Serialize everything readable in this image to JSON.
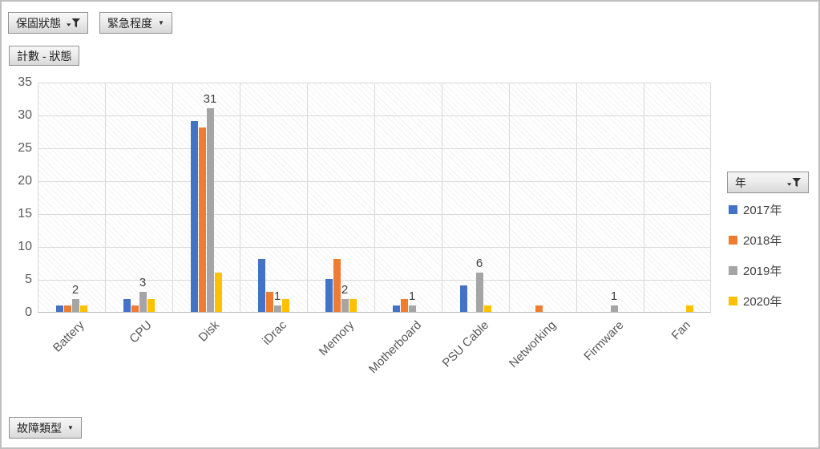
{
  "filters": {
    "warranty_label": "保固狀態",
    "urgency_label": "緊急程度",
    "value_label": "計數 - 狀態",
    "axis_label": "故障類型",
    "legend_label": "年"
  },
  "chart_data": {
    "type": "bar",
    "title": "計數 - 狀態",
    "categories": [
      "Battery",
      "CPU",
      "Disk",
      "iDrac",
      "Memory",
      "Motherboard",
      "PSU Cable",
      "Networking",
      "Firmware",
      "Fan"
    ],
    "series": [
      {
        "name": "2017年",
        "color": "#4472C4",
        "values": [
          1,
          2,
          29,
          8,
          5,
          1,
          4,
          0,
          0,
          0
        ]
      },
      {
        "name": "2018年",
        "color": "#ED7D31",
        "values": [
          1,
          1,
          28,
          3,
          8,
          2,
          0,
          1,
          0,
          0
        ]
      },
      {
        "name": "2019年",
        "color": "#A5A5A5",
        "values": [
          2,
          3,
          31,
          1,
          2,
          1,
          6,
          0,
          1,
          0
        ],
        "labels_shown": true
      },
      {
        "name": "2020年",
        "color": "#FFC000",
        "values": [
          1,
          2,
          6,
          2,
          2,
          0,
          1,
          0,
          0,
          1
        ]
      }
    ],
    "ylim": [
      0,
      35
    ],
    "yticks": [
      0,
      5,
      10,
      15,
      20,
      25,
      30,
      35
    ],
    "grid": true,
    "legend_position": "right"
  }
}
